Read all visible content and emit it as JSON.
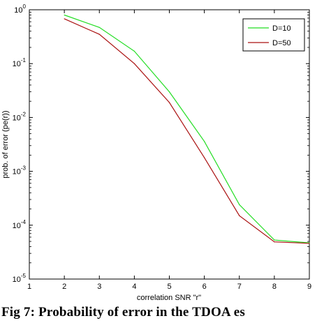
{
  "chart_data": {
    "type": "line",
    "title": "",
    "xlabel": "correlation SNR \"r\"",
    "ylabel": "prob. of error (pe(r))",
    "xlim": [
      1,
      9
    ],
    "ylim": [
      1e-05,
      1
    ],
    "yscale": "log",
    "x_ticks": [
      "1",
      "2",
      "3",
      "4",
      "5",
      "6",
      "7",
      "8",
      "9"
    ],
    "y_ticks": [
      {
        "base": "10",
        "exp": "0"
      },
      {
        "base": "10",
        "exp": "-1"
      },
      {
        "base": "10",
        "exp": "-2"
      },
      {
        "base": "10",
        "exp": "-3"
      },
      {
        "base": "10",
        "exp": "-4"
      },
      {
        "base": "10",
        "exp": "-5"
      }
    ],
    "grid": false,
    "legend_position": "top-right",
    "series": [
      {
        "name": "D=10",
        "color": "#22dd22",
        "x": [
          2,
          3,
          4,
          5,
          6,
          7,
          8,
          9
        ],
        "values": [
          0.8,
          0.47,
          0.17,
          0.03,
          0.0036,
          0.00024,
          5.3e-05,
          4.7e-05
        ]
      },
      {
        "name": "D=50",
        "color": "#aa1111",
        "x": [
          2,
          3,
          4,
          5,
          6,
          7,
          8,
          9
        ],
        "values": [
          0.68,
          0.35,
          0.1,
          0.019,
          0.0018,
          0.00015,
          4.9e-05,
          4.6e-05
        ]
      }
    ]
  },
  "caption": "Fig 7: Probability of error in the TDOA es"
}
